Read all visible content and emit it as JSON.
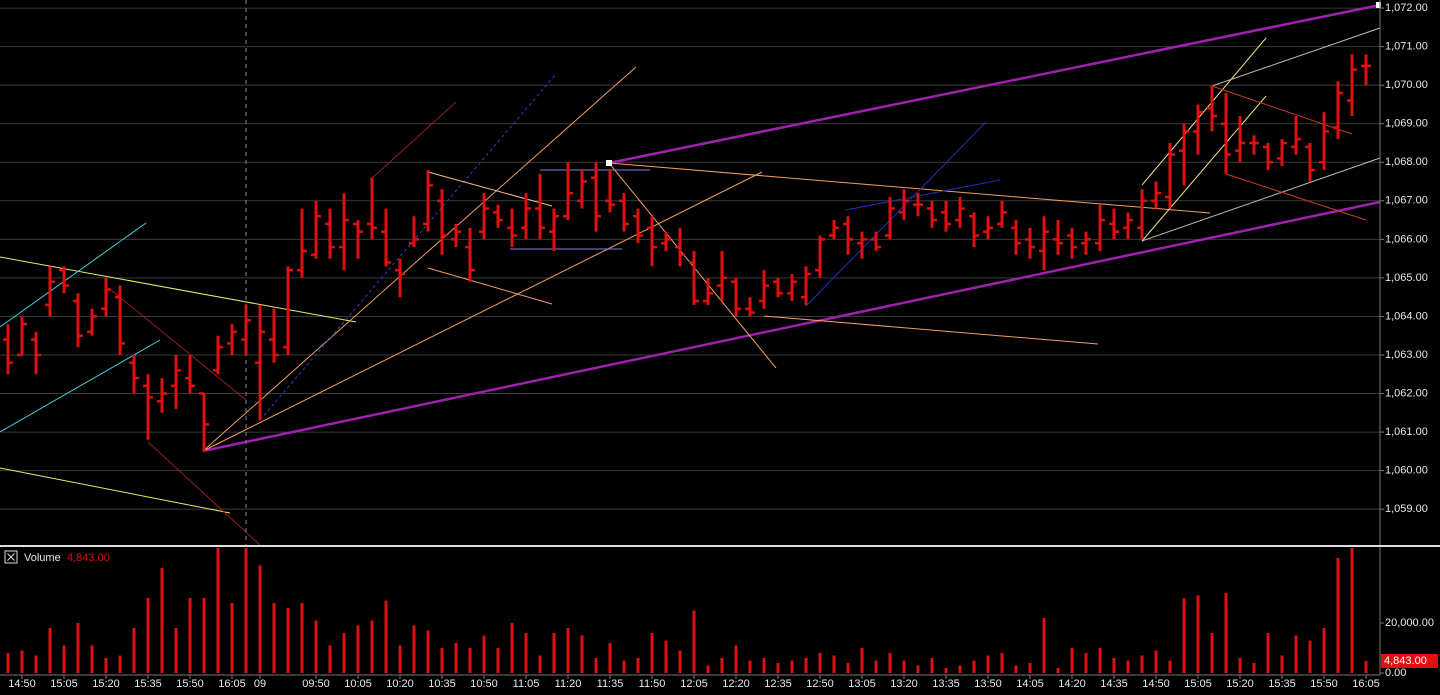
{
  "chart_data": [
    {
      "type": "ohlc",
      "color": "#e01010",
      "ylim": [
        1058.07,
        1072.21
      ],
      "yticks": [
        {
          "value": 1059,
          "label": "1,059.00"
        },
        {
          "value": 1060,
          "label": "1,060.00"
        },
        {
          "value": 1061,
          "label": "1,061.00"
        },
        {
          "value": 1062,
          "label": "1,062.00"
        },
        {
          "value": 1063,
          "label": "1,063.00"
        },
        {
          "value": 1064,
          "label": "1,064.00"
        },
        {
          "value": 1065,
          "label": "1,065.00"
        },
        {
          "value": 1066,
          "label": "1,066.00"
        },
        {
          "value": 1067,
          "label": "1,067.00"
        },
        {
          "value": 1068,
          "label": "1,068.00"
        },
        {
          "value": 1069,
          "label": "1,069.00"
        },
        {
          "value": 1070,
          "label": "1,070.00"
        },
        {
          "value": 1071,
          "label": "1,071.00"
        },
        {
          "value": 1072,
          "label": "1,072.00"
        }
      ],
      "grid": true,
      "open": [
        1063.4,
        1063.0,
        1063.4,
        1064.3,
        1065.2,
        1064.4,
        1063.6,
        1064.2,
        1064.5,
        1062.8,
        1062.2,
        1061.8,
        1062.2,
        1062.4,
        1062.0,
        1062.6,
        1063.3,
        1063.4,
        1062.8,
        1063.4,
        1063.2,
        1065.2,
        1065.6,
        1066.4,
        1065.8,
        1066.4,
        1066.4,
        1066.2,
        1065.2,
        1065.9,
        1066.4,
        1067.0,
        1066.0,
        1065.8,
        1066.2,
        1066.7,
        1066.3,
        1066.3,
        1066.8,
        1066.2,
        1066.6,
        1067.0,
        1067.6,
        1067.0,
        1067.0,
        1066.6,
        1066.3,
        1065.9,
        1065.8,
        1065.4,
        1064.4,
        1064.8,
        1064.9,
        1064.2,
        1064.4,
        1064.9,
        1064.6,
        1064.5,
        1065.2,
        1066.1,
        1066.4,
        1065.9,
        1066.0,
        1066.1,
        1066.7,
        1066.9,
        1066.8,
        1066.7,
        1066.5,
        1066.6,
        1066.2,
        1066.4,
        1066.3,
        1066.0,
        1065.7,
        1066.0,
        1066.1,
        1065.9,
        1065.9,
        1066.4,
        1066.3,
        1066.3,
        1067.0,
        1067.1,
        1068.3,
        1068.8,
        1069.4,
        1069.0,
        1068.3,
        1068.5,
        1068.4,
        1068.1,
        1068.4,
        1068.4,
        1068.0,
        1068.9,
        1069.6,
        1070.5
      ],
      "high": [
        1063.8,
        1064.0,
        1063.6,
        1065.3,
        1065.3,
        1064.6,
        1064.2,
        1065.0,
        1064.8,
        1063.0,
        1062.5,
        1062.4,
        1063.0,
        1063.0,
        1062.0,
        1063.5,
        1063.8,
        1064.3,
        1064.3,
        1064.2,
        1065.3,
        1066.8,
        1067.0,
        1066.8,
        1067.2,
        1066.5,
        1067.6,
        1066.8,
        1065.5,
        1066.6,
        1067.8,
        1067.3,
        1066.4,
        1066.3,
        1067.2,
        1066.9,
        1066.8,
        1067.2,
        1067.7,
        1066.8,
        1068.0,
        1067.8,
        1068.0,
        1067.8,
        1067.2,
        1066.8,
        1066.6,
        1066.2,
        1066.3,
        1065.7,
        1065.0,
        1065.7,
        1065.0,
        1064.5,
        1065.2,
        1065.0,
        1065.1,
        1065.3,
        1066.1,
        1066.5,
        1066.6,
        1066.2,
        1066.2,
        1067.1,
        1067.3,
        1067.2,
        1067.0,
        1067.0,
        1067.1,
        1066.7,
        1066.6,
        1067.0,
        1066.5,
        1066.3,
        1066.6,
        1066.5,
        1066.3,
        1066.2,
        1066.9,
        1066.8,
        1066.7,
        1067.3,
        1067.5,
        1068.5,
        1069.0,
        1069.5,
        1070.0,
        1069.8,
        1069.2,
        1068.7,
        1068.5,
        1068.6,
        1069.2,
        1068.5,
        1069.3,
        1070.1,
        1070.8,
        1070.8
      ],
      "low": [
        1062.5,
        1063.0,
        1062.5,
        1064.0,
        1064.6,
        1063.2,
        1063.5,
        1064.0,
        1063.0,
        1062.0,
        1060.8,
        1061.5,
        1061.6,
        1062.0,
        1060.5,
        1062.5,
        1063.0,
        1063.0,
        1061.3,
        1062.8,
        1063.0,
        1065.0,
        1065.5,
        1065.5,
        1065.2,
        1065.5,
        1066.0,
        1065.3,
        1064.5,
        1065.8,
        1066.2,
        1065.6,
        1065.8,
        1064.9,
        1066.0,
        1066.3,
        1065.8,
        1066.0,
        1066.0,
        1065.7,
        1066.5,
        1066.8,
        1066.2,
        1066.7,
        1066.2,
        1065.9,
        1065.3,
        1065.7,
        1065.3,
        1064.3,
        1064.3,
        1064.4,
        1064.0,
        1064.0,
        1064.2,
        1064.5,
        1064.4,
        1064.3,
        1065.0,
        1066.0,
        1065.6,
        1065.5,
        1065.7,
        1066.0,
        1066.5,
        1066.6,
        1066.3,
        1066.2,
        1066.3,
        1065.8,
        1066.0,
        1066.3,
        1065.6,
        1065.5,
        1065.2,
        1065.6,
        1065.5,
        1065.6,
        1065.7,
        1066.0,
        1066.0,
        1066.0,
        1066.8,
        1066.8,
        1067.4,
        1068.2,
        1068.8,
        1067.7,
        1068.0,
        1068.2,
        1067.8,
        1067.9,
        1068.2,
        1067.5,
        1067.8,
        1068.6,
        1069.2,
        1070.0
      ],
      "close": [
        1062.8,
        1063.8,
        1063.0,
        1064.9,
        1064.8,
        1063.5,
        1064.0,
        1064.7,
        1063.3,
        1062.4,
        1061.9,
        1062.0,
        1062.6,
        1062.2,
        1061.2,
        1063.2,
        1063.6,
        1063.9,
        1063.6,
        1063.0,
        1065.2,
        1065.7,
        1066.6,
        1065.8,
        1066.5,
        1066.2,
        1066.3,
        1065.4,
        1065.1,
        1066.0,
        1067.4,
        1066.1,
        1066.2,
        1065.2,
        1066.8,
        1066.5,
        1066.1,
        1066.8,
        1066.3,
        1066.6,
        1067.2,
        1067.5,
        1066.6,
        1066.9,
        1066.4,
        1066.1,
        1065.8,
        1066.0,
        1065.6,
        1064.4,
        1064.6,
        1065.0,
        1064.2,
        1064.1,
        1064.8,
        1064.6,
        1064.9,
        1065.1,
        1066.0,
        1066.3,
        1066.0,
        1066.0,
        1065.8,
        1066.8,
        1067.0,
        1066.9,
        1066.5,
        1066.4,
        1066.8,
        1066.1,
        1066.3,
        1066.7,
        1065.9,
        1065.8,
        1066.2,
        1065.9,
        1065.8,
        1066.0,
        1066.5,
        1066.2,
        1066.5,
        1067.0,
        1067.2,
        1068.2,
        1068.8,
        1069.3,
        1069.2,
        1068.2,
        1068.5,
        1068.5,
        1068.0,
        1068.5,
        1068.6,
        1067.8,
        1068.8,
        1069.8,
        1070.4,
        1070.5
      ]
    },
    {
      "type": "bar",
      "title": "Volume",
      "color": "#e01010",
      "categories": [
        null,
        "14:50",
        null,
        null,
        "15:05",
        null,
        null,
        "15:20",
        null,
        null,
        "15:35",
        null,
        null,
        "15:50",
        null,
        null,
        "16:05",
        null,
        "09",
        null,
        null,
        null,
        "09:50",
        null,
        null,
        "10:05",
        null,
        null,
        "10:20",
        null,
        null,
        "10:35",
        null,
        null,
        "10:50",
        null,
        null,
        "11:05",
        null,
        null,
        "11:20",
        null,
        null,
        "11:35",
        null,
        null,
        "11:50",
        null,
        null,
        "12:05",
        null,
        null,
        "12:20",
        null,
        null,
        "12:35",
        null,
        null,
        "12:50",
        null,
        null,
        "13:05",
        null,
        null,
        "13:20",
        null,
        null,
        "13:35",
        null,
        null,
        "13:50",
        null,
        null,
        "14:05",
        null,
        null,
        "14:20",
        null,
        null,
        "14:35",
        null,
        null,
        "14:50",
        null,
        null,
        "15:05",
        null,
        null,
        "15:20",
        null,
        null,
        "15:35",
        null,
        null,
        "15:50",
        null,
        null,
        "16:05"
      ],
      "values": [
        8000,
        9000,
        7000,
        18000,
        11000,
        20000,
        11000,
        6000,
        7000,
        18000,
        30000,
        42000,
        18000,
        30000,
        30000,
        50000,
        28000,
        50000,
        43000,
        28000,
        26000,
        28000,
        21000,
        11000,
        16000,
        19000,
        21000,
        29000,
        11000,
        19000,
        17000,
        10000,
        12000,
        10000,
        15000,
        10000,
        20000,
        16000,
        7000,
        16000,
        18000,
        15000,
        6000,
        12000,
        5000,
        6000,
        16000,
        13000,
        9000,
        25000,
        3000,
        6000,
        11000,
        5000,
        6000,
        4000,
        5000,
        6000,
        8000,
        7000,
        4000,
        10000,
        5000,
        8000,
        5000,
        3000,
        6000,
        2000,
        3000,
        5000,
        7000,
        8000,
        3000,
        4000,
        22000,
        2000,
        10000,
        8000,
        10000,
        6000,
        5000,
        7000,
        9000,
        5000,
        30000,
        31000,
        16000,
        32000,
        6000,
        4000,
        16000,
        7000,
        15000,
        13000,
        18000,
        46000,
        50000,
        4843
      ],
      "ylim": [
        0,
        50000
      ],
      "yticks": [
        {
          "value": 0,
          "label": "0.00"
        },
        {
          "value": 20000,
          "label": "20,000.00"
        }
      ],
      "annotations": [
        {
          "value": 4843,
          "label": "4,843.00"
        }
      ]
    }
  ]
}
